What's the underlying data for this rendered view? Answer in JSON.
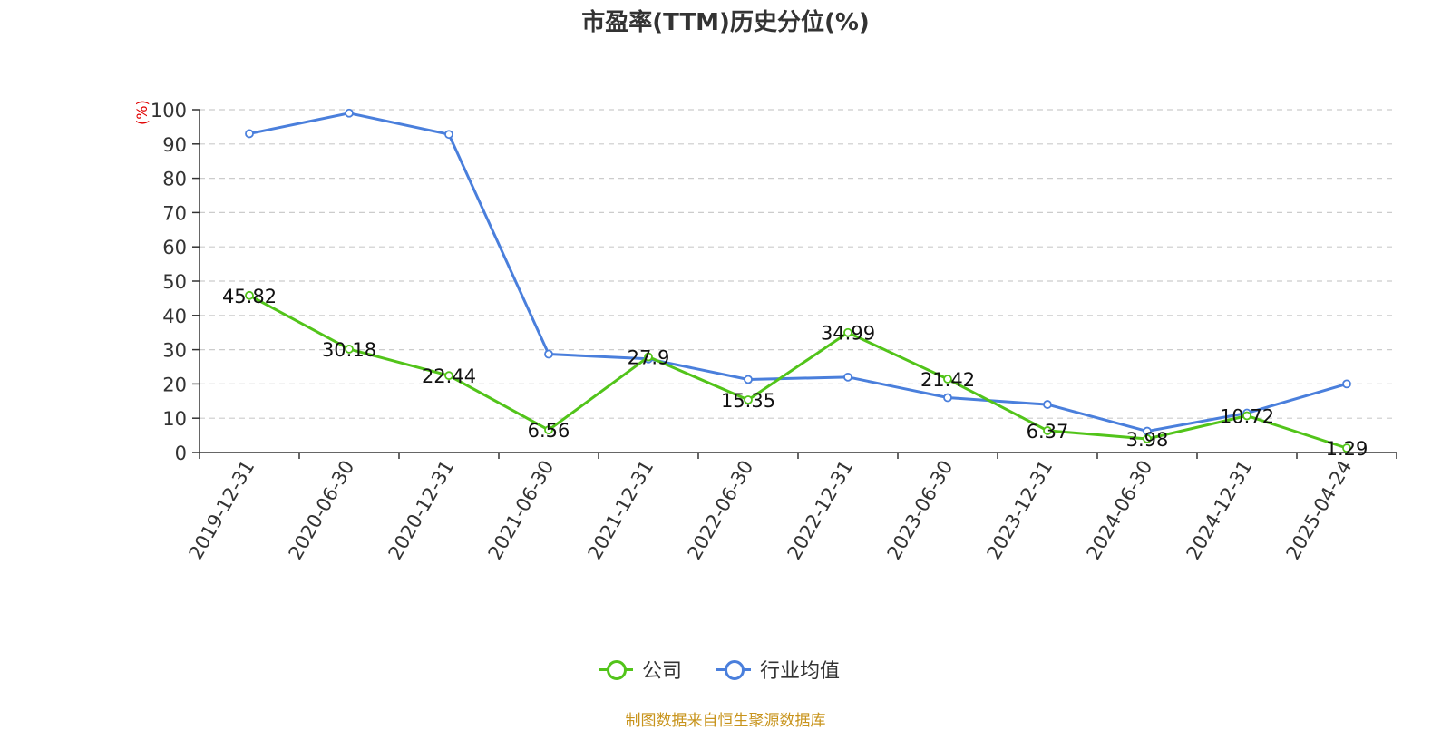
{
  "chart_data": {
    "type": "line",
    "title": "市盈率(TTM)历史分位(%)",
    "ylabel": "(%)",
    "ylim": [
      0,
      100
    ],
    "yticks": [
      0,
      10,
      20,
      30,
      40,
      50,
      60,
      70,
      80,
      90,
      100
    ],
    "categories": [
      "2019-12-31",
      "2020-06-30",
      "2020-12-31",
      "2021-06-30",
      "2021-12-31",
      "2022-06-30",
      "2022-12-31",
      "2023-06-30",
      "2023-12-31",
      "2024-06-30",
      "2024-12-31",
      "2025-04-24"
    ],
    "series": [
      {
        "name": "公司",
        "color": "#52c41a",
        "values": [
          45.82,
          30.18,
          22.44,
          6.56,
          27.9,
          15.35,
          34.99,
          21.42,
          6.37,
          3.98,
          10.72,
          1.29
        ],
        "labels": [
          "45.82",
          "30.18",
          "22.44",
          "6.56",
          "27.9",
          "15.35",
          "34.99",
          "21.42",
          "6.37",
          "3.98",
          "10.72",
          "1.29"
        ]
      },
      {
        "name": "行业均值",
        "color": "#4a7fdc",
        "values": [
          93,
          99,
          92.8,
          28.7,
          27.3,
          21.3,
          22,
          16,
          14,
          6.2,
          11.5,
          20
        ]
      }
    ],
    "grid": true,
    "legend_position": "bottom-center"
  },
  "footer": {
    "source": "制图数据来自恒生聚源数据库"
  }
}
